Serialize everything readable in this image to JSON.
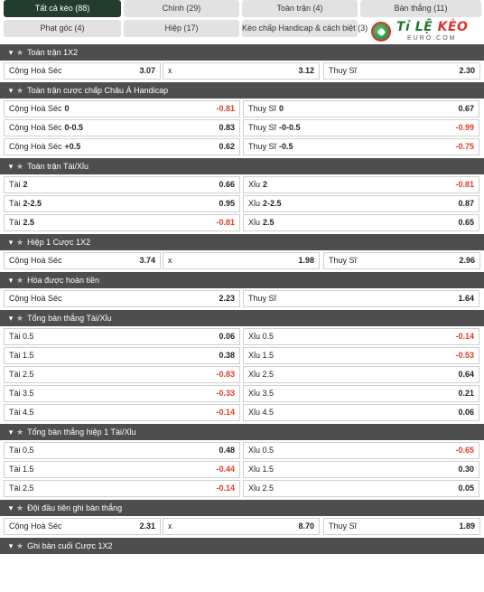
{
  "tabs": [
    {
      "label": "Tất cả kèo (88)",
      "active": true
    },
    {
      "label": "Chính (29)"
    },
    {
      "label": "Toàn trận (4)"
    },
    {
      "label": "Bàn thắng (11)"
    },
    {
      "label": "Phạt góc (4)"
    },
    {
      "label": "Hiệp (17)"
    },
    {
      "label": "Kèo chấp Handicap & cách biệt (3)"
    }
  ],
  "logo": {
    "brand_a": "Tỉ LỆ",
    "brand_b": "KÈO",
    "sub": "EURO.COM"
  },
  "sections": [
    {
      "title": "Toàn trận 1X2",
      "layout": "three",
      "rows": [
        [
          {
            "label": "Cộng Hoà Séc",
            "odd": "3.07"
          },
          {
            "label": "x",
            "odd": "3.12"
          },
          {
            "label": "Thuỵ Sĩ",
            "odd": "2.30"
          }
        ]
      ]
    },
    {
      "title": "Toàn trận cược chấp Châu Á Handicap",
      "layout": "two",
      "rows": [
        [
          {
            "label": "Cộng Hoà Séc",
            "line": "0",
            "odd": "-0.81"
          },
          {
            "label": "Thuỵ Sĩ",
            "line": "0",
            "odd": "0.67"
          }
        ],
        [
          {
            "label": "Cộng Hoà Séc",
            "line": "0-0.5",
            "odd": "0.83"
          },
          {
            "label": "Thuỵ Sĩ",
            "line": "-0-0.5",
            "odd": "-0.99"
          }
        ],
        [
          {
            "label": "Cộng Hoà Séc",
            "line": "+0.5",
            "odd": "0.62"
          },
          {
            "label": "Thuỵ Sĩ",
            "line": "-0.5",
            "odd": "-0.75"
          }
        ]
      ]
    },
    {
      "title": "Toàn trận Tài/Xỉu",
      "layout": "two",
      "rows": [
        [
          {
            "label": "Tài",
            "line": "2",
            "odd": "0.66"
          },
          {
            "label": "Xỉu",
            "line": "2",
            "odd": "-0.81"
          }
        ],
        [
          {
            "label": "Tài",
            "line": "2-2.5",
            "odd": "0.95"
          },
          {
            "label": "Xỉu",
            "line": "2-2.5",
            "odd": "0.87"
          }
        ],
        [
          {
            "label": "Tài",
            "line": "2.5",
            "odd": "-0.81"
          },
          {
            "label": "Xỉu",
            "line": "2.5",
            "odd": "0.65"
          }
        ]
      ]
    },
    {
      "title": "Hiệp 1 Cược 1X2",
      "layout": "three",
      "rows": [
        [
          {
            "label": "Cộng Hoà Séc",
            "odd": "3.74"
          },
          {
            "label": "x",
            "odd": "1.98"
          },
          {
            "label": "Thuỵ Sĩ",
            "odd": "2.96"
          }
        ]
      ]
    },
    {
      "title": "Hòa được hoàn tiền",
      "layout": "two",
      "rows": [
        [
          {
            "label": "Cộng Hoà Séc",
            "odd": "2.23"
          },
          {
            "label": "Thuỵ Sĩ",
            "odd": "1.64"
          }
        ]
      ]
    },
    {
      "title": "Tổng bàn thắng Tài/Xỉu",
      "layout": "two",
      "rows": [
        [
          {
            "label": "Tài 0.5",
            "odd": "0.06"
          },
          {
            "label": "Xỉu 0.5",
            "odd": "-0.14"
          }
        ],
        [
          {
            "label": "Tài 1.5",
            "odd": "0.38"
          },
          {
            "label": "Xỉu 1.5",
            "odd": "-0.53"
          }
        ],
        [
          {
            "label": "Tài 2.5",
            "odd": "-0.83"
          },
          {
            "label": "Xỉu 2.5",
            "odd": "0.64"
          }
        ],
        [
          {
            "label": "Tài 3.5",
            "odd": "-0.33"
          },
          {
            "label": "Xỉu 3.5",
            "odd": "0.21"
          }
        ],
        [
          {
            "label": "Tài 4.5",
            "odd": "-0.14"
          },
          {
            "label": "Xỉu 4.5",
            "odd": "0.06"
          }
        ]
      ]
    },
    {
      "title": "Tổng bàn thắng hiệp 1 Tài/Xỉu",
      "layout": "two",
      "rows": [
        [
          {
            "label": "Tài 0.5",
            "odd": "0.48"
          },
          {
            "label": "Xỉu 0.5",
            "odd": "-0.65"
          }
        ],
        [
          {
            "label": "Tài 1.5",
            "odd": "-0.44"
          },
          {
            "label": "Xỉu 1.5",
            "odd": "0.30"
          }
        ],
        [
          {
            "label": "Tài 2.5",
            "odd": "-0.14"
          },
          {
            "label": "Xỉu 2.5",
            "odd": "0.05"
          }
        ]
      ]
    },
    {
      "title": "Đội đầu tiên ghi bàn thắng",
      "layout": "three",
      "rows": [
        [
          {
            "label": "Cộng Hoà Séc",
            "odd": "2.31"
          },
          {
            "label": "x",
            "odd": "8.70"
          },
          {
            "label": "Thuỵ Sĩ",
            "odd": "1.89"
          }
        ]
      ]
    },
    {
      "title": "Ghi bàn cuối Cược 1X2",
      "layout": "three",
      "rows": []
    }
  ],
  "icons": {
    "collapse": "caret-down-icon",
    "favorite": "star-icon"
  },
  "colors": {
    "header_bg": "#4e4e4e",
    "active_tab": "#223d2d",
    "negative": "#e03b2a"
  }
}
